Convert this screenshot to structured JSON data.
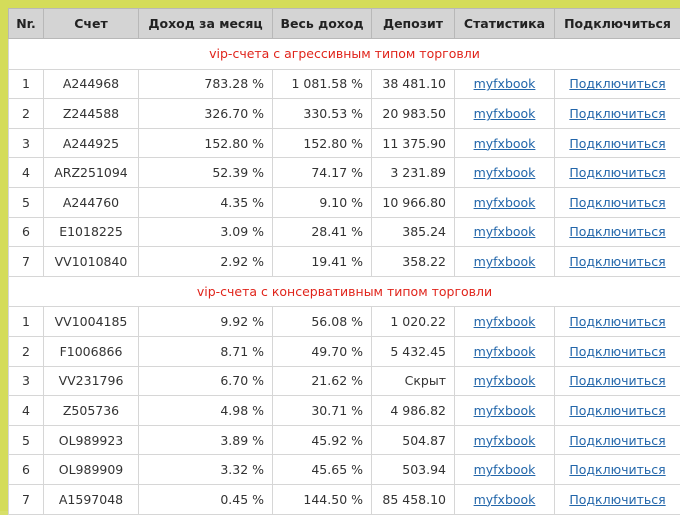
{
  "headers": [
    "Nr.",
    "Счет",
    "Доход за месяц",
    "Весь доход",
    "Депозит",
    "Статистика",
    "Подключиться"
  ],
  "sections": [
    {
      "title": "vip-счета с агрессивным типом торговли",
      "rows": [
        {
          "nr": "1",
          "account": "A244968",
          "month": "783.28 %",
          "total": "1 081.58 %",
          "deposit": "38 481.10",
          "stats": "myfxbook",
          "connect": "Подключиться"
        },
        {
          "nr": "2",
          "account": "Z244588",
          "month": "326.70 %",
          "total": "330.53 %",
          "deposit": "20 983.50",
          "stats": "myfxbook",
          "connect": "Подключиться"
        },
        {
          "nr": "3",
          "account": "A244925",
          "month": "152.80 %",
          "total": "152.80 %",
          "deposit": "11 375.90",
          "stats": "myfxbook",
          "connect": "Подключиться"
        },
        {
          "nr": "4",
          "account": "ARZ251094",
          "month": "52.39 %",
          "total": "74.17 %",
          "deposit": "3 231.89",
          "stats": "myfxbook",
          "connect": "Подключиться"
        },
        {
          "nr": "5",
          "account": "A244760",
          "month": "4.35 %",
          "total": "9.10 %",
          "deposit": "10 966.80",
          "stats": "myfxbook",
          "connect": "Подключиться"
        },
        {
          "nr": "6",
          "account": "E1018225",
          "month": "3.09 %",
          "total": "28.41 %",
          "deposit": "385.24",
          "stats": "myfxbook",
          "connect": "Подключиться"
        },
        {
          "nr": "7",
          "account": "VV1010840",
          "month": "2.92 %",
          "total": "19.41 %",
          "deposit": "358.22",
          "stats": "myfxbook",
          "connect": "Подключиться"
        }
      ]
    },
    {
      "title": "vip-счета с консервативным типом торговли",
      "rows": [
        {
          "nr": "1",
          "account": "VV1004185",
          "month": "9.92 %",
          "total": "56.08 %",
          "deposit": "1 020.22",
          "stats": "myfxbook",
          "connect": "Подключиться"
        },
        {
          "nr": "2",
          "account": "F1006866",
          "month": "8.71 %",
          "total": "49.70 %",
          "deposit": "5 432.45",
          "stats": "myfxbook",
          "connect": "Подключиться"
        },
        {
          "nr": "3",
          "account": "VV231796",
          "month": "6.70 %",
          "total": "21.62 %",
          "deposit": "Скрыт",
          "stats": "myfxbook",
          "connect": "Подключиться"
        },
        {
          "nr": "4",
          "account": "Z505736",
          "month": "4.98 %",
          "total": "30.71 %",
          "deposit": "4 986.82",
          "stats": "myfxbook",
          "connect": "Подключиться"
        },
        {
          "nr": "5",
          "account": "OL989923",
          "month": "3.89 %",
          "total": "45.92 %",
          "deposit": "504.87",
          "stats": "myfxbook",
          "connect": "Подключиться"
        },
        {
          "nr": "6",
          "account": "OL989909",
          "month": "3.32 %",
          "total": "45.65 %",
          "deposit": "503.94",
          "stats": "myfxbook",
          "connect": "Подключиться"
        },
        {
          "nr": "7",
          "account": "A1597048",
          "month": "0.45 %",
          "total": "144.50 %",
          "deposit": "85 458.10",
          "stats": "myfxbook",
          "connect": "Подключиться"
        }
      ]
    }
  ],
  "colors": {
    "frame": "#d4dc5a",
    "header_bg": "#d4d4d4",
    "section_title": "#e0241b",
    "link": "#2266aa"
  }
}
